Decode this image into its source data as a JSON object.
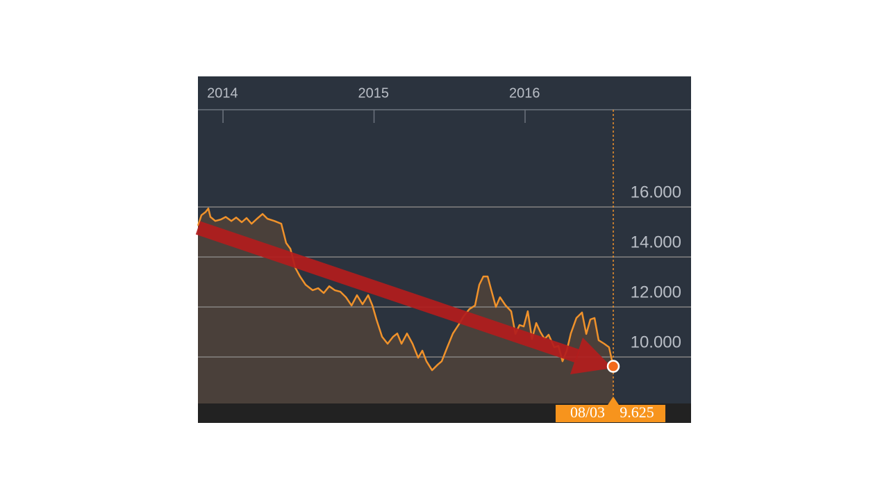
{
  "chart_data": {
    "type": "area",
    "x": [
      2013.834,
      2013.857,
      2013.885,
      2013.903,
      2013.917,
      2013.949,
      2013.986,
      2014.018,
      2014.055,
      2014.087,
      2014.124,
      2014.156,
      2014.189,
      2014.225,
      2014.262,
      2014.294,
      2014.34,
      2014.386,
      2014.418,
      2014.446,
      2014.478,
      2014.51,
      2014.547,
      2014.593,
      2014.63,
      2014.667,
      2014.703,
      2014.74,
      2014.777,
      2014.814,
      2014.851,
      2014.887,
      2014.924,
      2014.961,
      2014.989,
      2015.016,
      2015.053,
      2015.09,
      2015.126,
      2015.154,
      2015.182,
      2015.218,
      2015.255,
      2015.292,
      2015.32,
      2015.347,
      2015.384,
      2015.421,
      2015.448,
      2015.485,
      2015.522,
      2015.559,
      2015.595,
      2015.632,
      2015.669,
      2015.697,
      2015.724,
      2015.752,
      2015.779,
      2015.807,
      2015.834,
      2015.871,
      2015.908,
      2015.936,
      2015.963,
      2015.991,
      2016.018,
      2016.046,
      2016.074,
      2016.101,
      2016.129,
      2016.156,
      2016.193,
      2016.221,
      2016.248,
      2016.276,
      2016.303,
      2016.34,
      2016.377,
      2016.405,
      2016.432,
      2016.46,
      2016.487,
      2016.524,
      2016.556,
      2016.584
    ],
    "values": [
      15.25,
      15.67,
      15.8,
      15.94,
      15.6,
      15.44,
      15.5,
      15.6,
      15.44,
      15.58,
      15.39,
      15.56,
      15.33,
      15.53,
      15.72,
      15.53,
      15.44,
      15.33,
      14.56,
      14.33,
      13.58,
      13.22,
      12.89,
      12.67,
      12.75,
      12.56,
      12.83,
      12.67,
      12.61,
      12.39,
      12.06,
      12.47,
      12.11,
      12.47,
      12.06,
      11.5,
      10.81,
      10.53,
      10.81,
      10.94,
      10.53,
      10.94,
      10.53,
      9.97,
      10.25,
      9.83,
      9.47,
      9.69,
      9.83,
      10.39,
      10.94,
      11.28,
      11.64,
      11.92,
      12.06,
      12.89,
      13.22,
      13.22,
      12.61,
      12.0,
      12.39,
      12.06,
      11.83,
      10.92,
      11.28,
      11.22,
      11.83,
      10.72,
      11.36,
      11.0,
      10.72,
      10.89,
      10.39,
      10.44,
      9.83,
      10.25,
      10.94,
      11.56,
      11.78,
      10.92,
      11.5,
      11.56,
      10.67,
      10.53,
      10.39,
      9.625
    ],
    "color": "#f0922b",
    "xlim": [
      2013.834,
      2017.099
    ],
    "xticks": [
      2014,
      2015,
      2016
    ],
    "ylim": [
      8.14,
      19.89
    ],
    "yticks": [
      {
        "value": 10,
        "label": "10.000"
      },
      {
        "value": 12,
        "label": "12.000"
      },
      {
        "value": 14,
        "label": "14.000"
      },
      {
        "value": 16,
        "label": "16.000"
      }
    ],
    "grid": true,
    "cursor_label": "08/03"
  }
}
